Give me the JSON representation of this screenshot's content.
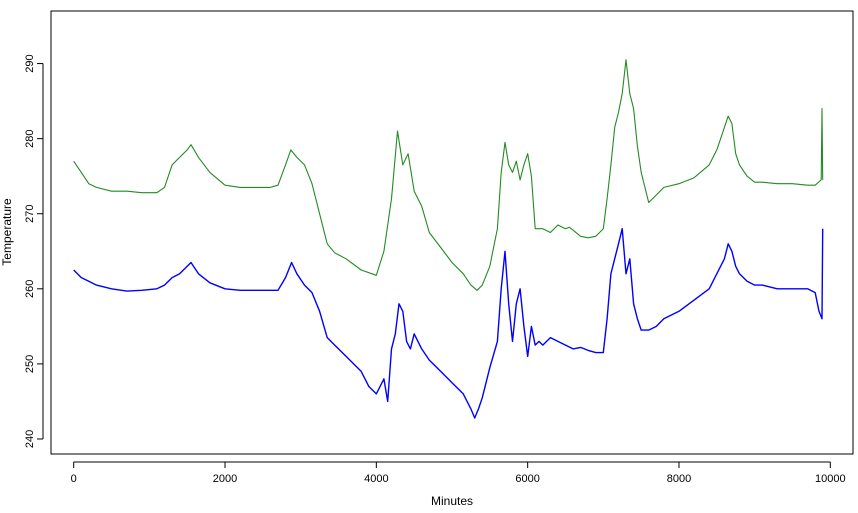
{
  "chart_data": {
    "type": "line",
    "title": "",
    "xlabel": "Minutes",
    "ylabel": "Temperature",
    "xlim": [
      -300,
      10300
    ],
    "ylim": [
      238,
      297
    ],
    "x_ticks": [
      0,
      2000,
      4000,
      6000,
      8000,
      10000
    ],
    "y_ticks": [
      240,
      250,
      260,
      270,
      280,
      290
    ],
    "grid": false,
    "series": [
      {
        "color": "#228B22",
        "x": [
          0,
          100,
          200,
          300,
          500,
          700,
          900,
          1100,
          1200,
          1300,
          1400,
          1500,
          1550,
          1650,
          1800,
          2000,
          2200,
          2400,
          2600,
          2700,
          2800,
          2870,
          2950,
          3050,
          3150,
          3250,
          3350,
          3450,
          3600,
          3800,
          4000,
          4100,
          4200,
          4280,
          4350,
          4420,
          4500,
          4600,
          4700,
          4850,
          5000,
          5150,
          5250,
          5330,
          5400,
          5500,
          5600,
          5650,
          5700,
          5750,
          5800,
          5850,
          5900,
          5950,
          6000,
          6050,
          6100,
          6200,
          6300,
          6400,
          6500,
          6550,
          6600,
          6700,
          6800,
          6900,
          7000,
          7050,
          7100,
          7150,
          7200,
          7250,
          7300,
          7350,
          7400,
          7450,
          7500,
          7600,
          7700,
          7800,
          8000,
          8200,
          8400,
          8500,
          8600,
          8650,
          8700,
          8750,
          8800,
          8900,
          9000,
          9100,
          9300,
          9500,
          9700,
          9800,
          9880,
          9890,
          9900
        ],
        "y": [
          277,
          275.5,
          274,
          273.5,
          273,
          273,
          272.8,
          272.8,
          273.5,
          276.5,
          277.5,
          278.5,
          279.2,
          277.5,
          275.5,
          273.8,
          273.5,
          273.5,
          273.5,
          273.8,
          276.5,
          278.5,
          277.5,
          276.5,
          274,
          270,
          266,
          264.8,
          264,
          262.5,
          261.8,
          265,
          272,
          281,
          276.5,
          278,
          273,
          271,
          267.5,
          265.5,
          263.5,
          262,
          260.5,
          259.8,
          260.5,
          263,
          268,
          275.5,
          279.5,
          276.5,
          275.5,
          277,
          274.5,
          276.5,
          278,
          275,
          268,
          268,
          267.5,
          268.5,
          268,
          268.2,
          267.8,
          267,
          266.8,
          267,
          268,
          272,
          276.5,
          281.5,
          283.5,
          286,
          290.5,
          286,
          284,
          279,
          275.5,
          271.5,
          272.5,
          273.5,
          274,
          274.8,
          276.5,
          278.5,
          281.5,
          283,
          282,
          278,
          276.5,
          275,
          274.2,
          274.2,
          274,
          274,
          273.8,
          273.8,
          274.5,
          284,
          274.5
        ]
      },
      {
        "color": "#0000FF",
        "x": [
          0,
          100,
          200,
          300,
          500,
          700,
          900,
          1100,
          1200,
          1300,
          1400,
          1500,
          1550,
          1650,
          1800,
          2000,
          2200,
          2400,
          2600,
          2700,
          2800,
          2880,
          2950,
          3050,
          3150,
          3250,
          3350,
          3450,
          3600,
          3800,
          3900,
          4000,
          4100,
          4150,
          4200,
          4250,
          4300,
          4350,
          4400,
          4450,
          4500,
          4600,
          4700,
          4850,
          5000,
          5150,
          5250,
          5300,
          5350,
          5400,
          5500,
          5600,
          5650,
          5700,
          5750,
          5800,
          5850,
          5900,
          5950,
          6000,
          6050,
          6100,
          6150,
          6200,
          6300,
          6400,
          6500,
          6600,
          6700,
          6800,
          6900,
          7000,
          7050,
          7100,
          7150,
          7200,
          7250,
          7300,
          7350,
          7400,
          7450,
          7500,
          7600,
          7700,
          7800,
          8000,
          8200,
          8400,
          8500,
          8600,
          8650,
          8700,
          8750,
          8800,
          8900,
          9000,
          9100,
          9300,
          9500,
          9700,
          9800,
          9850,
          9890,
          9900
        ],
        "y": [
          262.5,
          261.5,
          261,
          260.5,
          260,
          259.7,
          259.8,
          260,
          260.5,
          261.5,
          262,
          263,
          263.5,
          262,
          260.8,
          260,
          259.8,
          259.8,
          259.8,
          259.8,
          261.5,
          263.5,
          262,
          260.5,
          259.5,
          257,
          253.5,
          252.5,
          251,
          249,
          247,
          246,
          248,
          245,
          252,
          254,
          258,
          257,
          253,
          252,
          254,
          252,
          250.5,
          249,
          247.5,
          246,
          244,
          242.8,
          244,
          245.5,
          249.5,
          253,
          260,
          265,
          258,
          253,
          258,
          260,
          255,
          251,
          255,
          252.5,
          253,
          252.5,
          253.5,
          253,
          252.5,
          252,
          252.2,
          251.8,
          251.5,
          251.5,
          256,
          262,
          264,
          266,
          268,
          262,
          264,
          258,
          256,
          254.5,
          254.5,
          255,
          256,
          257,
          258.5,
          260,
          262,
          264,
          266,
          265,
          263,
          262,
          261,
          260.5,
          260.5,
          260,
          260,
          260,
          259.5,
          257,
          256,
          268
        ]
      }
    ]
  }
}
